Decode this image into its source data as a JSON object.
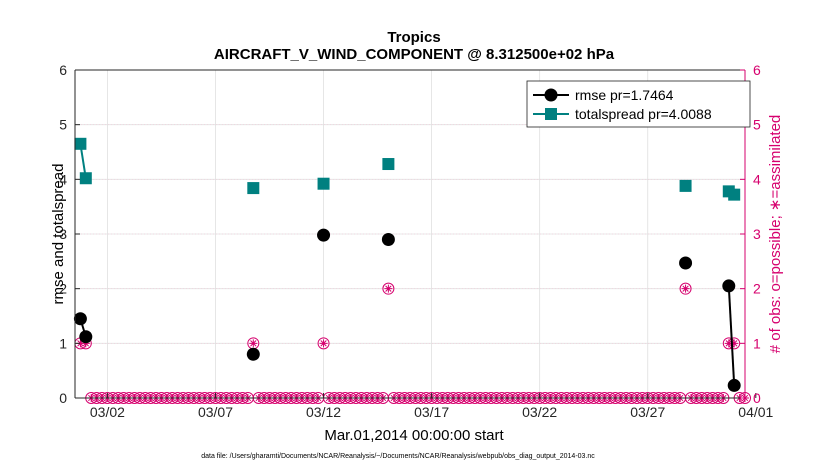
{
  "chart_data": {
    "type": "line",
    "title": "Tropics",
    "subtitle": "AIRCRAFT_V_WIND_COMPONENT @ 8.312500e+02 hPa",
    "xlabel": "Mar.01,2014 00:00:00 start",
    "ylabel": "rmse and totalspread",
    "y2label": "# of obs: o=possible; ∗=assimilated",
    "xlim": [
      0.5,
      31.5
    ],
    "ylim": [
      0,
      6
    ],
    "y2lim": [
      0,
      6
    ],
    "xticks": [
      2,
      7,
      12,
      17,
      22,
      27,
      32
    ],
    "xtick_labels": [
      "03/02",
      "03/07",
      "03/12",
      "03/17",
      "03/22",
      "03/27",
      "04/01"
    ],
    "yticks": [
      0,
      1,
      2,
      3,
      4,
      5,
      6
    ],
    "ytick_labels": [
      "0",
      "1",
      "2",
      "3",
      "4",
      "5",
      "6"
    ],
    "y2ticks": [
      0,
      1,
      2,
      3,
      4,
      5,
      6
    ],
    "y2tick_labels": [
      "0",
      "1",
      "2",
      "3",
      "4",
      "5",
      "6"
    ],
    "grid": true,
    "legend_position": "top-right",
    "footnote": "data file: /Users/gharamti/Documents/NCAR/Reanalysis/~/Documents/NCAR/Reanalysis/webpub/obs_diag_output_2014-03.nc",
    "colors": {
      "rmse": "#000000",
      "spread": "#008080",
      "obs": "#d6006e",
      "grid": "#e0e0e0",
      "grid2": "#f4c4d6"
    },
    "series": [
      {
        "name": "rmse",
        "legend": "rmse pr=1.7464",
        "points": [
          [
            0.75,
            1.45
          ],
          [
            1.0,
            1.12
          ],
          [
            8.75,
            0.8
          ],
          [
            12.0,
            2.98
          ],
          [
            15.0,
            2.9
          ],
          [
            28.75,
            2.47
          ],
          [
            30.75,
            2.05
          ],
          [
            31.0,
            0.23
          ]
        ]
      },
      {
        "name": "totalspread",
        "legend": "totalspread pr=4.0088",
        "points": [
          [
            0.75,
            4.65
          ],
          [
            1.0,
            4.02
          ],
          [
            8.75,
            3.84
          ],
          [
            12.0,
            3.92
          ],
          [
            15.0,
            4.28
          ],
          [
            28.75,
            3.88
          ],
          [
            30.75,
            3.78
          ],
          [
            31.0,
            3.72
          ]
        ]
      }
    ],
    "obs_counts": {
      "nonzero": [
        [
          0.75,
          1
        ],
        [
          1.0,
          1
        ],
        [
          8.75,
          1
        ],
        [
          12.0,
          1
        ],
        [
          15.0,
          2
        ],
        [
          28.75,
          2
        ],
        [
          30.75,
          1
        ],
        [
          31.0,
          1
        ]
      ],
      "zero_start": 1.25,
      "zero_end": 31.5,
      "zero_step": 0.25
    },
    "rmse_segments": [
      [
        [
          0.75,
          1.45
        ],
        [
          1.0,
          1.12
        ]
      ],
      [
        [
          30.75,
          2.05
        ],
        [
          31.0,
          0.23
        ]
      ]
    ],
    "spread_segments": [
      [
        [
          0.75,
          4.65
        ],
        [
          1.0,
          4.02
        ]
      ],
      [
        [
          30.75,
          3.78
        ],
        [
          31.0,
          3.72
        ]
      ]
    ]
  }
}
